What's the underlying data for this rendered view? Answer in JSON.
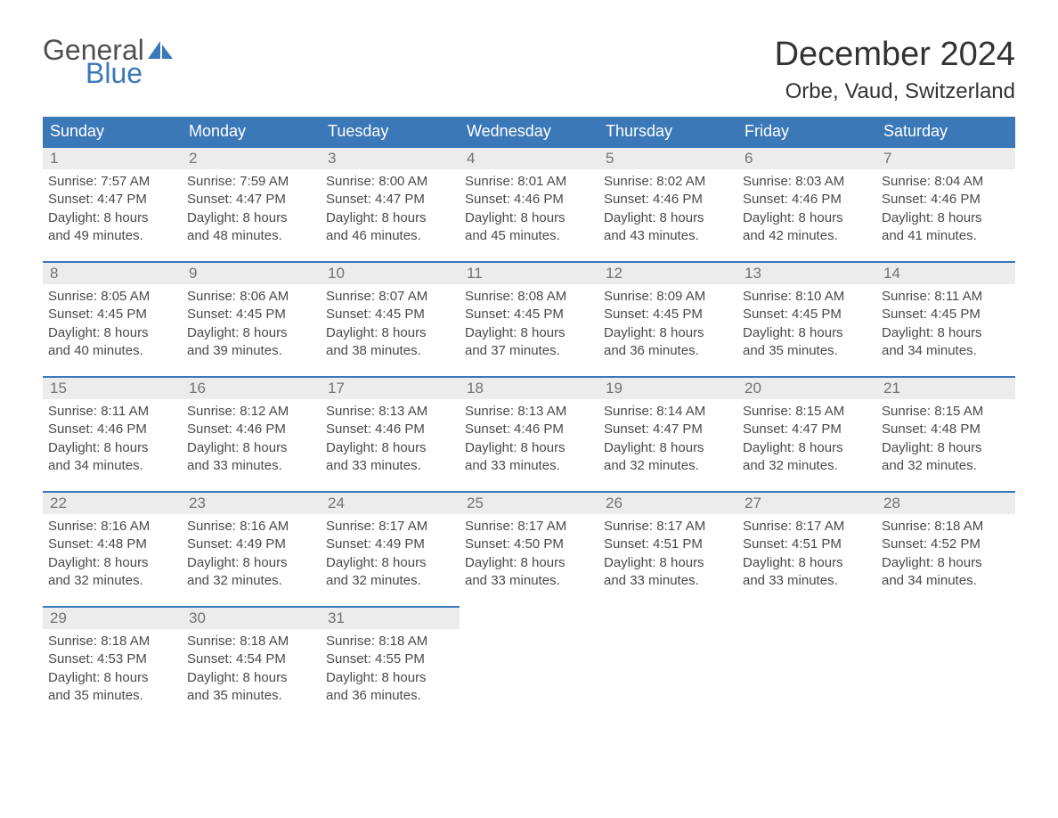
{
  "logo": {
    "word1": "General",
    "word2": "Blue",
    "general_color": "#505050",
    "blue_color": "#3b78b8",
    "sail_color": "#3b78b8"
  },
  "title": "December 2024",
  "location": "Orbe, Vaud, Switzerland",
  "colors": {
    "header_bg": "#3b78b8",
    "header_text": "#ffffff",
    "daynum_bg": "#ececec",
    "daynum_text": "#737373",
    "cell_border_top": "#3b78b8",
    "body_text": "#4a4a4a",
    "page_bg": "#ffffff"
  },
  "fonts": {
    "title_size_pt": 28,
    "location_size_pt": 18,
    "dayhead_size_pt": 14,
    "daynum_size_pt": 13,
    "detail_size_pt": 11
  },
  "day_headers": [
    "Sunday",
    "Monday",
    "Tuesday",
    "Wednesday",
    "Thursday",
    "Friday",
    "Saturday"
  ],
  "weeks": [
    [
      {
        "n": "1",
        "sunrise": "7:57 AM",
        "sunset": "4:47 PM",
        "dl1": "Daylight: 8 hours",
        "dl2": "and 49 minutes."
      },
      {
        "n": "2",
        "sunrise": "7:59 AM",
        "sunset": "4:47 PM",
        "dl1": "Daylight: 8 hours",
        "dl2": "and 48 minutes."
      },
      {
        "n": "3",
        "sunrise": "8:00 AM",
        "sunset": "4:47 PM",
        "dl1": "Daylight: 8 hours",
        "dl2": "and 46 minutes."
      },
      {
        "n": "4",
        "sunrise": "8:01 AM",
        "sunset": "4:46 PM",
        "dl1": "Daylight: 8 hours",
        "dl2": "and 45 minutes."
      },
      {
        "n": "5",
        "sunrise": "8:02 AM",
        "sunset": "4:46 PM",
        "dl1": "Daylight: 8 hours",
        "dl2": "and 43 minutes."
      },
      {
        "n": "6",
        "sunrise": "8:03 AM",
        "sunset": "4:46 PM",
        "dl1": "Daylight: 8 hours",
        "dl2": "and 42 minutes."
      },
      {
        "n": "7",
        "sunrise": "8:04 AM",
        "sunset": "4:46 PM",
        "dl1": "Daylight: 8 hours",
        "dl2": "and 41 minutes."
      }
    ],
    [
      {
        "n": "8",
        "sunrise": "8:05 AM",
        "sunset": "4:45 PM",
        "dl1": "Daylight: 8 hours",
        "dl2": "and 40 minutes."
      },
      {
        "n": "9",
        "sunrise": "8:06 AM",
        "sunset": "4:45 PM",
        "dl1": "Daylight: 8 hours",
        "dl2": "and 39 minutes."
      },
      {
        "n": "10",
        "sunrise": "8:07 AM",
        "sunset": "4:45 PM",
        "dl1": "Daylight: 8 hours",
        "dl2": "and 38 minutes."
      },
      {
        "n": "11",
        "sunrise": "8:08 AM",
        "sunset": "4:45 PM",
        "dl1": "Daylight: 8 hours",
        "dl2": "and 37 minutes."
      },
      {
        "n": "12",
        "sunrise": "8:09 AM",
        "sunset": "4:45 PM",
        "dl1": "Daylight: 8 hours",
        "dl2": "and 36 minutes."
      },
      {
        "n": "13",
        "sunrise": "8:10 AM",
        "sunset": "4:45 PM",
        "dl1": "Daylight: 8 hours",
        "dl2": "and 35 minutes."
      },
      {
        "n": "14",
        "sunrise": "8:11 AM",
        "sunset": "4:45 PM",
        "dl1": "Daylight: 8 hours",
        "dl2": "and 34 minutes."
      }
    ],
    [
      {
        "n": "15",
        "sunrise": "8:11 AM",
        "sunset": "4:46 PM",
        "dl1": "Daylight: 8 hours",
        "dl2": "and 34 minutes."
      },
      {
        "n": "16",
        "sunrise": "8:12 AM",
        "sunset": "4:46 PM",
        "dl1": "Daylight: 8 hours",
        "dl2": "and 33 minutes."
      },
      {
        "n": "17",
        "sunrise": "8:13 AM",
        "sunset": "4:46 PM",
        "dl1": "Daylight: 8 hours",
        "dl2": "and 33 minutes."
      },
      {
        "n": "18",
        "sunrise": "8:13 AM",
        "sunset": "4:46 PM",
        "dl1": "Daylight: 8 hours",
        "dl2": "and 33 minutes."
      },
      {
        "n": "19",
        "sunrise": "8:14 AM",
        "sunset": "4:47 PM",
        "dl1": "Daylight: 8 hours",
        "dl2": "and 32 minutes."
      },
      {
        "n": "20",
        "sunrise": "8:15 AM",
        "sunset": "4:47 PM",
        "dl1": "Daylight: 8 hours",
        "dl2": "and 32 minutes."
      },
      {
        "n": "21",
        "sunrise": "8:15 AM",
        "sunset": "4:48 PM",
        "dl1": "Daylight: 8 hours",
        "dl2": "and 32 minutes."
      }
    ],
    [
      {
        "n": "22",
        "sunrise": "8:16 AM",
        "sunset": "4:48 PM",
        "dl1": "Daylight: 8 hours",
        "dl2": "and 32 minutes."
      },
      {
        "n": "23",
        "sunrise": "8:16 AM",
        "sunset": "4:49 PM",
        "dl1": "Daylight: 8 hours",
        "dl2": "and 32 minutes."
      },
      {
        "n": "24",
        "sunrise": "8:17 AM",
        "sunset": "4:49 PM",
        "dl1": "Daylight: 8 hours",
        "dl2": "and 32 minutes."
      },
      {
        "n": "25",
        "sunrise": "8:17 AM",
        "sunset": "4:50 PM",
        "dl1": "Daylight: 8 hours",
        "dl2": "and 33 minutes."
      },
      {
        "n": "26",
        "sunrise": "8:17 AM",
        "sunset": "4:51 PM",
        "dl1": "Daylight: 8 hours",
        "dl2": "and 33 minutes."
      },
      {
        "n": "27",
        "sunrise": "8:17 AM",
        "sunset": "4:51 PM",
        "dl1": "Daylight: 8 hours",
        "dl2": "and 33 minutes."
      },
      {
        "n": "28",
        "sunrise": "8:18 AM",
        "sunset": "4:52 PM",
        "dl1": "Daylight: 8 hours",
        "dl2": "and 34 minutes."
      }
    ],
    [
      {
        "n": "29",
        "sunrise": "8:18 AM",
        "sunset": "4:53 PM",
        "dl1": "Daylight: 8 hours",
        "dl2": "and 35 minutes."
      },
      {
        "n": "30",
        "sunrise": "8:18 AM",
        "sunset": "4:54 PM",
        "dl1": "Daylight: 8 hours",
        "dl2": "and 35 minutes."
      },
      {
        "n": "31",
        "sunrise": "8:18 AM",
        "sunset": "4:55 PM",
        "dl1": "Daylight: 8 hours",
        "dl2": "and 36 minutes."
      },
      null,
      null,
      null,
      null
    ]
  ],
  "labels": {
    "sunrise_prefix": "Sunrise: ",
    "sunset_prefix": "Sunset: "
  }
}
